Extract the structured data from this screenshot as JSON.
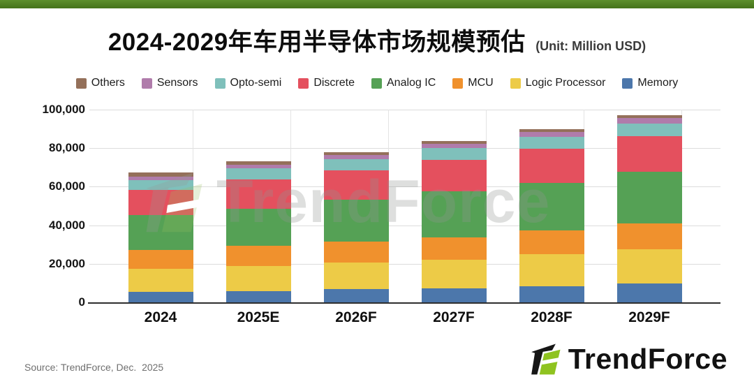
{
  "page": {
    "top_bar_color": "#45731a",
    "background": "#ffffff"
  },
  "header": {
    "title": "2024-2029年车用半导体市场规模预估",
    "unit_label": "(Unit: Million USD)"
  },
  "chart_data": {
    "type": "bar",
    "stacked": true,
    "title": "2024-2029年车用半导体市场规模预估",
    "unit": "Million USD",
    "categories": [
      "2024",
      "2025E",
      "2026F",
      "2027F",
      "2028F",
      "2029F"
    ],
    "series": [
      {
        "name": "Others",
        "color": "#94705a",
        "values": [
          2100,
          1600,
          1400,
          1500,
          1600,
          1500
        ]
      },
      {
        "name": "Sensors",
        "color": "#b07cab",
        "values": [
          1800,
          1700,
          2300,
          2300,
          2700,
          2700
        ]
      },
      {
        "name": "Opto-semi",
        "color": "#7fc0bb",
        "values": [
          5100,
          6000,
          5700,
          6200,
          6000,
          6400
        ]
      },
      {
        "name": "Discrete",
        "color": "#e4505e",
        "values": [
          13000,
          15000,
          15500,
          16100,
          17900,
          18800
        ]
      },
      {
        "name": "Analog IC",
        "color": "#55a155",
        "values": [
          18200,
          19300,
          21400,
          24000,
          24300,
          26800
        ]
      },
      {
        "name": "MCU",
        "color": "#f0912d",
        "values": [
          9800,
          10500,
          10900,
          11400,
          12600,
          13100
        ]
      },
      {
        "name": "Logic Processor",
        "color": "#edcb47",
        "values": [
          11900,
          13100,
          13800,
          15000,
          16700,
          17900
        ]
      },
      {
        "name": "Memory",
        "color": "#4c77ab",
        "values": [
          5600,
          5800,
          7000,
          7300,
          8200,
          9800
        ]
      }
    ],
    "stack_order_bottom_to_top": [
      "Memory",
      "Logic Processor",
      "MCU",
      "Analog IC",
      "Discrete",
      "Opto-semi",
      "Sensors",
      "Others"
    ],
    "approx_totals": [
      67500,
      73000,
      78000,
      83800,
      90000,
      97000
    ],
    "ylim": [
      0,
      100000
    ],
    "yticks": [
      0,
      20000,
      40000,
      60000,
      80000,
      100000
    ],
    "ytick_labels": [
      "0",
      "20,000",
      "40,000",
      "60,000",
      "80,000",
      "100,000"
    ],
    "grid": "horizontal",
    "legend_position": "top",
    "xlabel": "",
    "ylabel": ""
  },
  "watermark": {
    "text": "TrendForce"
  },
  "footer": {
    "source": "Source: TrendForce, Dec.  2025",
    "logo_text": "TrendForce"
  }
}
